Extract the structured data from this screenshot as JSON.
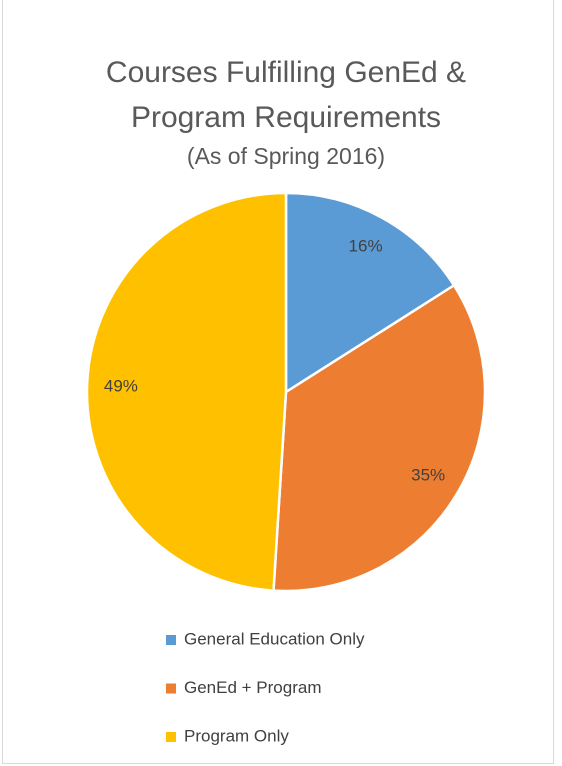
{
  "chart_data": {
    "type": "pie",
    "title": "Courses Fulfilling GenEd & Program Requirements",
    "subtitle": "(As of Spring 2016)",
    "categories": [
      "General Education Only",
      "GenEd + Program",
      "Program Only"
    ],
    "values": [
      16,
      35,
      49
    ],
    "value_labels": [
      "16%",
      "35%",
      "49%"
    ],
    "colors": [
      "#5b9bd5",
      "#ed7d31",
      "#ffc000"
    ],
    "legend": "bottom"
  }
}
